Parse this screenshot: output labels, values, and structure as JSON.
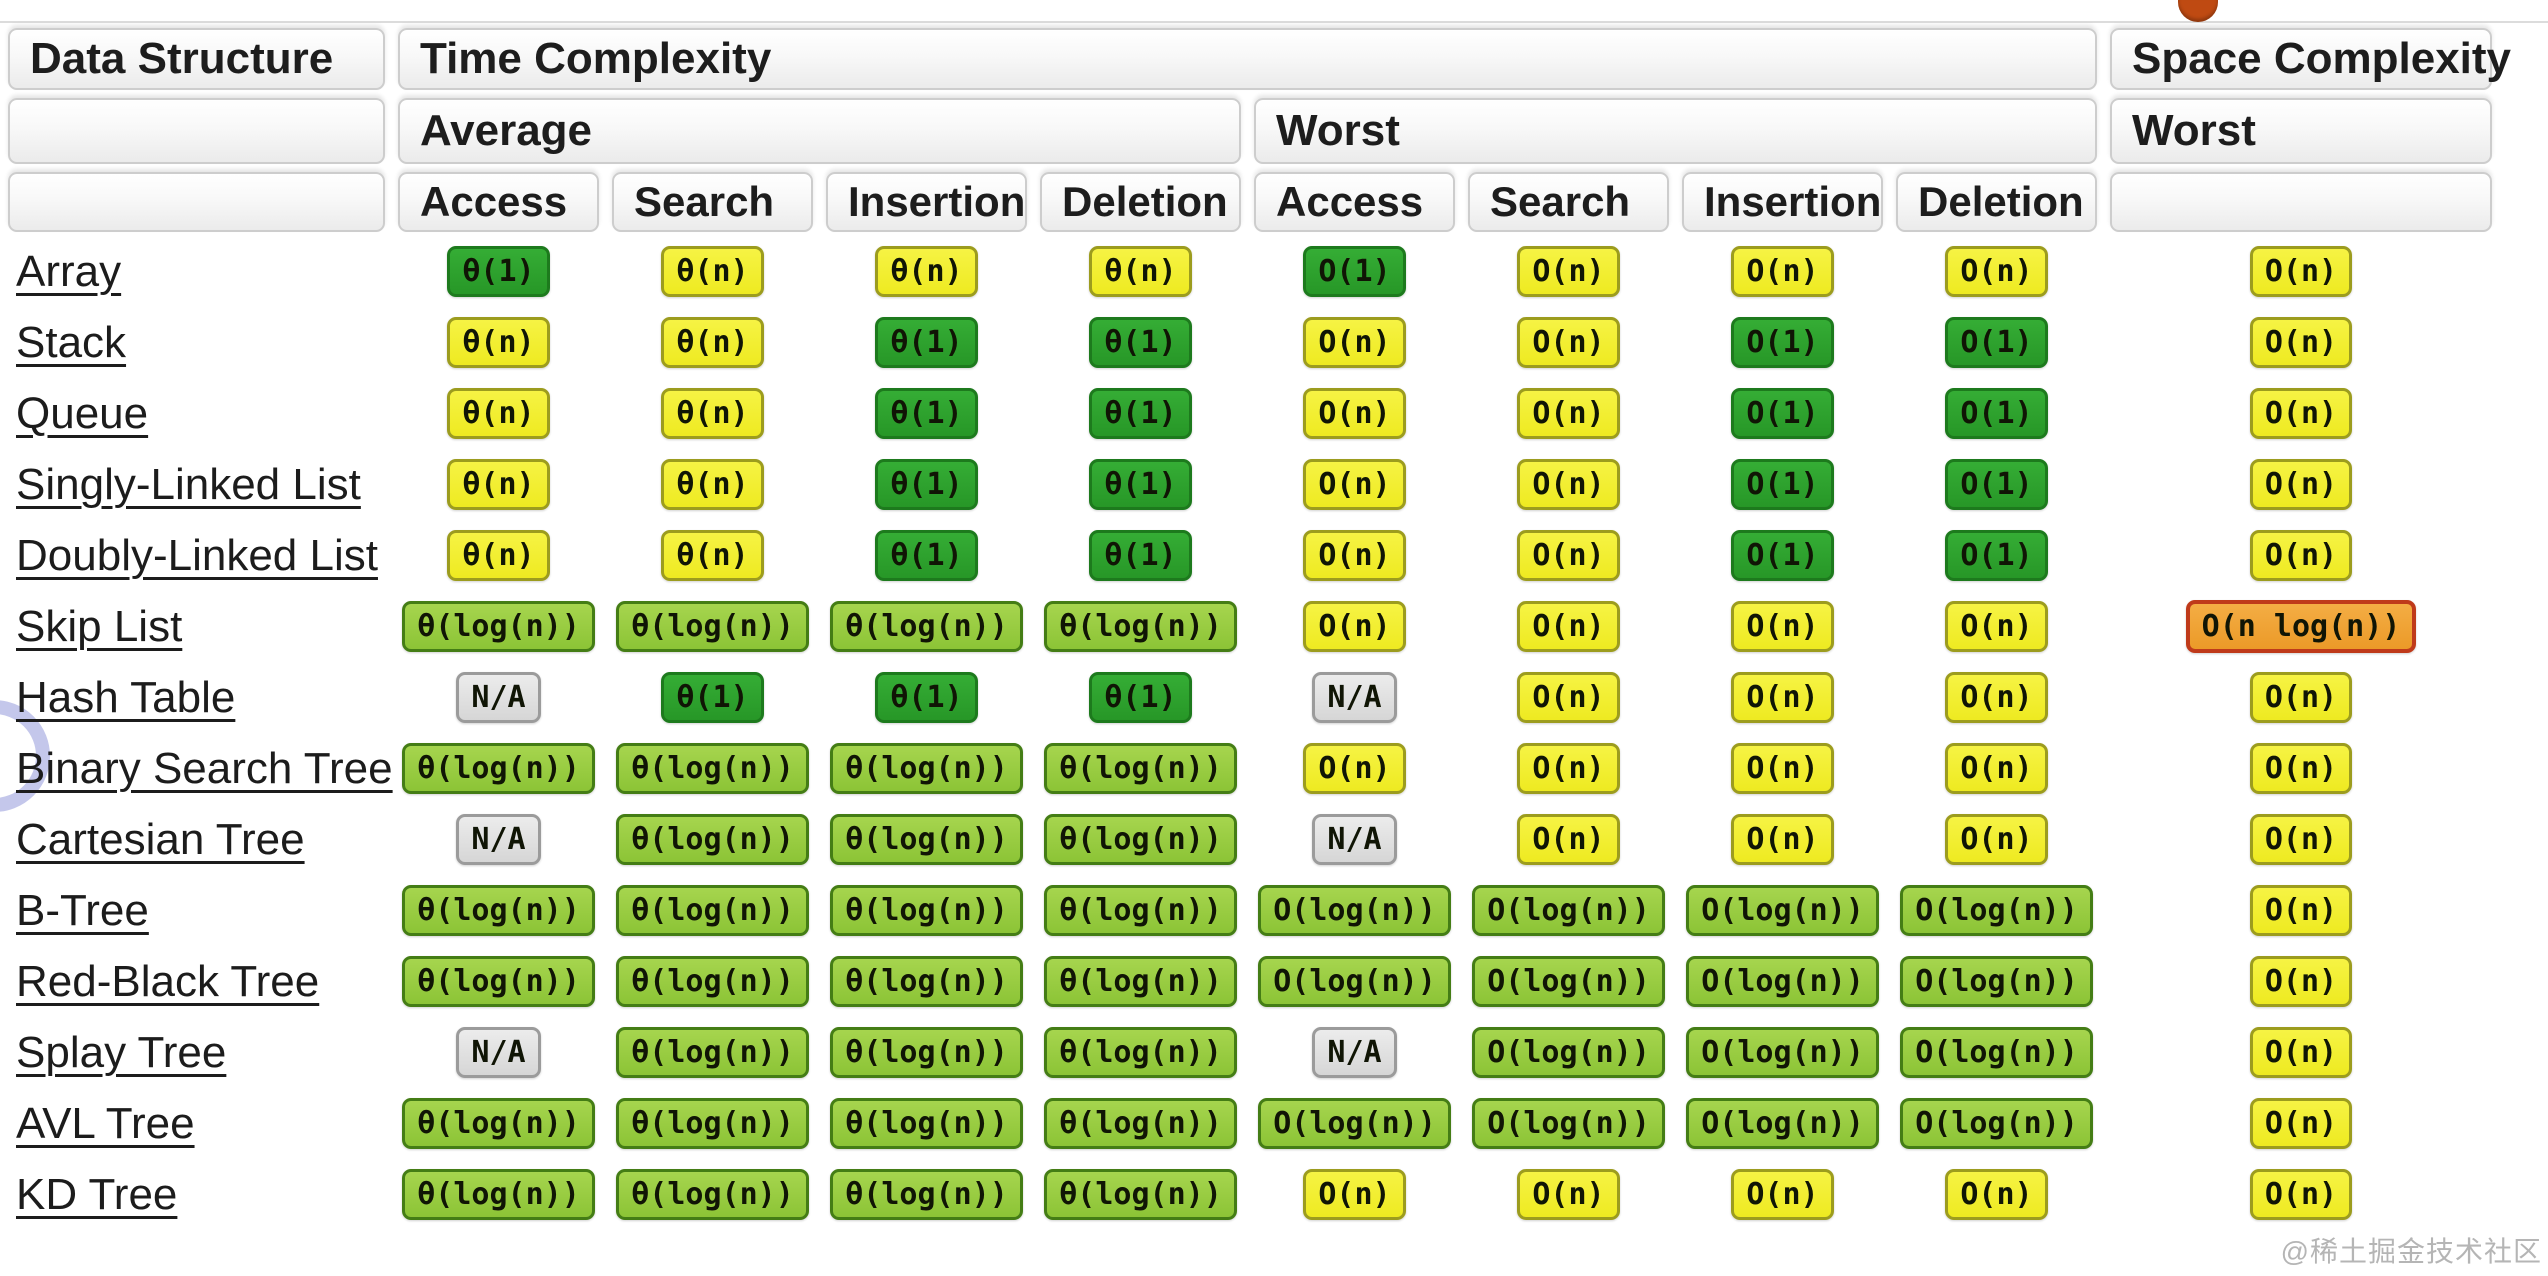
{
  "header": {
    "data_structure": "Data Structure",
    "time_complexity": "Time Complexity",
    "space_complexity": "Space Complexity",
    "average": "Average",
    "worst": "Worst",
    "space_worst": "Worst"
  },
  "subcolumns": {
    "access": "Access",
    "search": "Search",
    "insertion": "Insertion",
    "deletion": "Deletion"
  },
  "colors": {
    "constant_green": "#2ca32c",
    "linear_yellow": "#f2ef33",
    "log_lime": "#94c93f",
    "na_gray": "#dedede",
    "nlogn_orange": "#f2a63a",
    "orange_border_red": "#bf3a1a",
    "notch_orange": "#bf4a12",
    "click_ring_purple": "#8a90d8"
  },
  "rows": [
    {
      "label": "Array",
      "cells": [
        {
          "text": "θ(1)",
          "color": "green"
        },
        {
          "text": "θ(n)",
          "color": "yellow"
        },
        {
          "text": "θ(n)",
          "color": "yellow"
        },
        {
          "text": "θ(n)",
          "color": "yellow"
        },
        {
          "text": "O(1)",
          "color": "green"
        },
        {
          "text": "O(n)",
          "color": "yellow"
        },
        {
          "text": "O(n)",
          "color": "yellow"
        },
        {
          "text": "O(n)",
          "color": "yellow"
        },
        {
          "text": "O(n)",
          "color": "yellow"
        }
      ]
    },
    {
      "label": "Stack",
      "cells": [
        {
          "text": "θ(n)",
          "color": "yellow"
        },
        {
          "text": "θ(n)",
          "color": "yellow"
        },
        {
          "text": "θ(1)",
          "color": "green"
        },
        {
          "text": "θ(1)",
          "color": "green"
        },
        {
          "text": "O(n)",
          "color": "yellow"
        },
        {
          "text": "O(n)",
          "color": "yellow"
        },
        {
          "text": "O(1)",
          "color": "green"
        },
        {
          "text": "O(1)",
          "color": "green"
        },
        {
          "text": "O(n)",
          "color": "yellow"
        }
      ]
    },
    {
      "label": "Queue",
      "cells": [
        {
          "text": "θ(n)",
          "color": "yellow"
        },
        {
          "text": "θ(n)",
          "color": "yellow"
        },
        {
          "text": "θ(1)",
          "color": "green"
        },
        {
          "text": "θ(1)",
          "color": "green"
        },
        {
          "text": "O(n)",
          "color": "yellow"
        },
        {
          "text": "O(n)",
          "color": "yellow"
        },
        {
          "text": "O(1)",
          "color": "green"
        },
        {
          "text": "O(1)",
          "color": "green"
        },
        {
          "text": "O(n)",
          "color": "yellow"
        }
      ]
    },
    {
      "label": "Singly-Linked List",
      "cells": [
        {
          "text": "θ(n)",
          "color": "yellow"
        },
        {
          "text": "θ(n)",
          "color": "yellow"
        },
        {
          "text": "θ(1)",
          "color": "green"
        },
        {
          "text": "θ(1)",
          "color": "green"
        },
        {
          "text": "O(n)",
          "color": "yellow"
        },
        {
          "text": "O(n)",
          "color": "yellow"
        },
        {
          "text": "O(1)",
          "color": "green"
        },
        {
          "text": "O(1)",
          "color": "green"
        },
        {
          "text": "O(n)",
          "color": "yellow"
        }
      ]
    },
    {
      "label": "Doubly-Linked List",
      "cells": [
        {
          "text": "θ(n)",
          "color": "yellow"
        },
        {
          "text": "θ(n)",
          "color": "yellow"
        },
        {
          "text": "θ(1)",
          "color": "green"
        },
        {
          "text": "θ(1)",
          "color": "green"
        },
        {
          "text": "O(n)",
          "color": "yellow"
        },
        {
          "text": "O(n)",
          "color": "yellow"
        },
        {
          "text": "O(1)",
          "color": "green"
        },
        {
          "text": "O(1)",
          "color": "green"
        },
        {
          "text": "O(n)",
          "color": "yellow"
        }
      ]
    },
    {
      "label": "Skip List",
      "cells": [
        {
          "text": "θ(log(n))",
          "color": "lime"
        },
        {
          "text": "θ(log(n))",
          "color": "lime"
        },
        {
          "text": "θ(log(n))",
          "color": "lime"
        },
        {
          "text": "θ(log(n))",
          "color": "lime"
        },
        {
          "text": "O(n)",
          "color": "yellow"
        },
        {
          "text": "O(n)",
          "color": "yellow"
        },
        {
          "text": "O(n)",
          "color": "yellow"
        },
        {
          "text": "O(n)",
          "color": "yellow"
        },
        {
          "text": "O(n log(n))",
          "color": "orange"
        }
      ]
    },
    {
      "label": "Hash Table",
      "cells": [
        {
          "text": "N/A",
          "color": "gray"
        },
        {
          "text": "θ(1)",
          "color": "green"
        },
        {
          "text": "θ(1)",
          "color": "green"
        },
        {
          "text": "θ(1)",
          "color": "green"
        },
        {
          "text": "N/A",
          "color": "gray"
        },
        {
          "text": "O(n)",
          "color": "yellow"
        },
        {
          "text": "O(n)",
          "color": "yellow"
        },
        {
          "text": "O(n)",
          "color": "yellow"
        },
        {
          "text": "O(n)",
          "color": "yellow"
        }
      ]
    },
    {
      "label": "Binary Search Tree",
      "cells": [
        {
          "text": "θ(log(n))",
          "color": "lime"
        },
        {
          "text": "θ(log(n))",
          "color": "lime"
        },
        {
          "text": "θ(log(n))",
          "color": "lime"
        },
        {
          "text": "θ(log(n))",
          "color": "lime"
        },
        {
          "text": "O(n)",
          "color": "yellow"
        },
        {
          "text": "O(n)",
          "color": "yellow"
        },
        {
          "text": "O(n)",
          "color": "yellow"
        },
        {
          "text": "O(n)",
          "color": "yellow"
        },
        {
          "text": "O(n)",
          "color": "yellow"
        }
      ]
    },
    {
      "label": "Cartesian Tree",
      "cells": [
        {
          "text": "N/A",
          "color": "gray"
        },
        {
          "text": "θ(log(n))",
          "color": "lime"
        },
        {
          "text": "θ(log(n))",
          "color": "lime"
        },
        {
          "text": "θ(log(n))",
          "color": "lime"
        },
        {
          "text": "N/A",
          "color": "gray"
        },
        {
          "text": "O(n)",
          "color": "yellow"
        },
        {
          "text": "O(n)",
          "color": "yellow"
        },
        {
          "text": "O(n)",
          "color": "yellow"
        },
        {
          "text": "O(n)",
          "color": "yellow"
        }
      ]
    },
    {
      "label": "B-Tree",
      "cells": [
        {
          "text": "θ(log(n))",
          "color": "lime"
        },
        {
          "text": "θ(log(n))",
          "color": "lime"
        },
        {
          "text": "θ(log(n))",
          "color": "lime"
        },
        {
          "text": "θ(log(n))",
          "color": "lime"
        },
        {
          "text": "O(log(n))",
          "color": "lime"
        },
        {
          "text": "O(log(n))",
          "color": "lime"
        },
        {
          "text": "O(log(n))",
          "color": "lime"
        },
        {
          "text": "O(log(n))",
          "color": "lime"
        },
        {
          "text": "O(n)",
          "color": "yellow"
        }
      ]
    },
    {
      "label": "Red-Black Tree",
      "cells": [
        {
          "text": "θ(log(n))",
          "color": "lime"
        },
        {
          "text": "θ(log(n))",
          "color": "lime"
        },
        {
          "text": "θ(log(n))",
          "color": "lime"
        },
        {
          "text": "θ(log(n))",
          "color": "lime"
        },
        {
          "text": "O(log(n))",
          "color": "lime"
        },
        {
          "text": "O(log(n))",
          "color": "lime"
        },
        {
          "text": "O(log(n))",
          "color": "lime"
        },
        {
          "text": "O(log(n))",
          "color": "lime"
        },
        {
          "text": "O(n)",
          "color": "yellow"
        }
      ]
    },
    {
      "label": "Splay Tree",
      "cells": [
        {
          "text": "N/A",
          "color": "gray"
        },
        {
          "text": "θ(log(n))",
          "color": "lime"
        },
        {
          "text": "θ(log(n))",
          "color": "lime"
        },
        {
          "text": "θ(log(n))",
          "color": "lime"
        },
        {
          "text": "N/A",
          "color": "gray"
        },
        {
          "text": "O(log(n))",
          "color": "lime"
        },
        {
          "text": "O(log(n))",
          "color": "lime"
        },
        {
          "text": "O(log(n))",
          "color": "lime"
        },
        {
          "text": "O(n)",
          "color": "yellow"
        }
      ]
    },
    {
      "label": "AVL Tree",
      "cells": [
        {
          "text": "θ(log(n))",
          "color": "lime"
        },
        {
          "text": "θ(log(n))",
          "color": "lime"
        },
        {
          "text": "θ(log(n))",
          "color": "lime"
        },
        {
          "text": "θ(log(n))",
          "color": "lime"
        },
        {
          "text": "O(log(n))",
          "color": "lime"
        },
        {
          "text": "O(log(n))",
          "color": "lime"
        },
        {
          "text": "O(log(n))",
          "color": "lime"
        },
        {
          "text": "O(log(n))",
          "color": "lime"
        },
        {
          "text": "O(n)",
          "color": "yellow"
        }
      ]
    },
    {
      "label": "KD Tree",
      "cells": [
        {
          "text": "θ(log(n))",
          "color": "lime"
        },
        {
          "text": "θ(log(n))",
          "color": "lime"
        },
        {
          "text": "θ(log(n))",
          "color": "lime"
        },
        {
          "text": "θ(log(n))",
          "color": "lime"
        },
        {
          "text": "O(n)",
          "color": "yellow"
        },
        {
          "text": "O(n)",
          "color": "yellow"
        },
        {
          "text": "O(n)",
          "color": "yellow"
        },
        {
          "text": "O(n)",
          "color": "yellow"
        },
        {
          "text": "O(n)",
          "color": "yellow"
        }
      ]
    }
  ],
  "watermark": "@稀土掘金技术社区"
}
